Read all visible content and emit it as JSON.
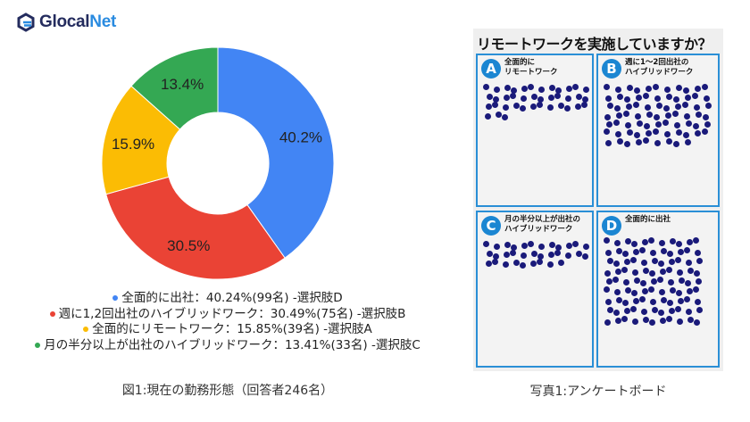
{
  "brand": {
    "name_prefix": "Glocal",
    "name_suffix": "Net"
  },
  "chart_data": {
    "type": "pie",
    "donut": true,
    "categories": [
      "全面的に出社",
      "週に1,2回出社のハイブリッドワーク",
      "全面的にリモートワーク",
      "月の半分以上が出社のハイブリッドワーク"
    ],
    "values": [
      40.2,
      30.5,
      15.9,
      13.4
    ],
    "data_labels": [
      "40.2%",
      "30.5%",
      "15.9%",
      "13.4%"
    ],
    "colors": [
      "#4285f4",
      "#ea4335",
      "#fbbc04",
      "#34a853"
    ],
    "legend_placement": "bottom",
    "legend": [
      "全面的に出社：40.24%(99名) -選択肢D",
      "週に1,2回出社のハイブリッドワーク：30.49%(75名) -選択肢B",
      "全面的にリモートワーク：15.85%(39名) -選択肢A",
      "月の半分以上が出社のハイブリッドワーク：13.41%(33名) -選択肢C"
    ],
    "caption": "図1:現在の勤務形態（回答者246名）"
  },
  "photo": {
    "title": "リモートワークを実施していますか？",
    "quadrants": [
      {
        "letter": "A",
        "label_lines": [
          "全面的に",
          "リモートワーク"
        ],
        "count": 39
      },
      {
        "letter": "B",
        "label_lines": [
          "週に1～2回出社の",
          "ハイブリッドワーク"
        ],
        "count": 75
      },
      {
        "letter": "C",
        "label_lines": [
          "月の半分以上が出社の",
          "ハイブリッドワーク"
        ],
        "count": 33
      },
      {
        "letter": "D",
        "label_lines": [
          "全面的に出社"
        ],
        "count": 99
      }
    ],
    "caption": "写真1:アンケートボード"
  }
}
